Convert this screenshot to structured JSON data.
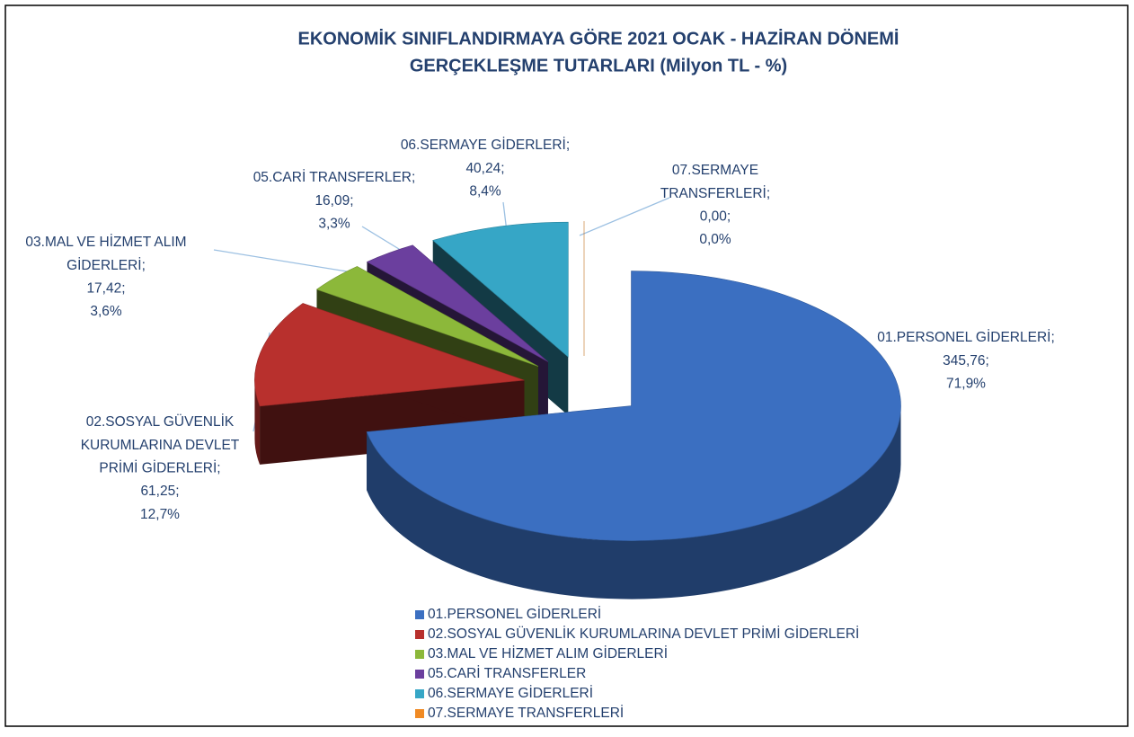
{
  "chart_data": {
    "type": "pie",
    "title_lines": [
      "EKONOMİK SINIFLANDIRMAYA GÖRE 2021 OCAK - HAZİRAN DÖNEMİ",
      "GERÇEKLEŞME TUTARLARI (Milyon TL - %)"
    ],
    "categories": [
      "01.PERSONEL GİDERLERİ",
      "02.SOSYAL GÜVENLİK KURUMLARINA DEVLET PRİMİ GİDERLERİ",
      "03.MAL VE HİZMET ALIM GİDERLERİ",
      "05.CARİ TRANSFERLER",
      "06.SERMAYE GİDERLERİ",
      "07.SERMAYE TRANSFERLERİ"
    ],
    "values": [
      345.76,
      61.25,
      17.42,
      16.09,
      40.24,
      0.0
    ],
    "value_labels": [
      "345,76;",
      "61,25;",
      "17,42;",
      "16,09;",
      "40,24;",
      "0,00;"
    ],
    "percents": [
      71.9,
      12.7,
      3.6,
      3.3,
      8.4,
      0.0
    ],
    "percent_labels": [
      "71,9%",
      "12,7%",
      "3,6%",
      "3,3%",
      "8,4%",
      "0,0%"
    ],
    "label_lines": [
      [
        "01.PERSONEL GİDERLERİ;"
      ],
      [
        "02.SOSYAL GÜVENLİK",
        "KURUMLARINA DEVLET",
        "PRİMİ GİDERLERİ;"
      ],
      [
        "03.MAL VE HİZMET ALIM",
        "GİDERLERİ;"
      ],
      [
        "05.CARİ TRANSFERLER;"
      ],
      [
        "06.SERMAYE GİDERLERİ;"
      ],
      [
        "07.SERMAYE",
        "TRANSFERLERİ;"
      ]
    ],
    "colors": [
      "#3b6fc1",
      "#b8302d",
      "#8cb83a",
      "#6b3f9e",
      "#36a6c6",
      "#f08a24"
    ],
    "legend": "bottom"
  }
}
